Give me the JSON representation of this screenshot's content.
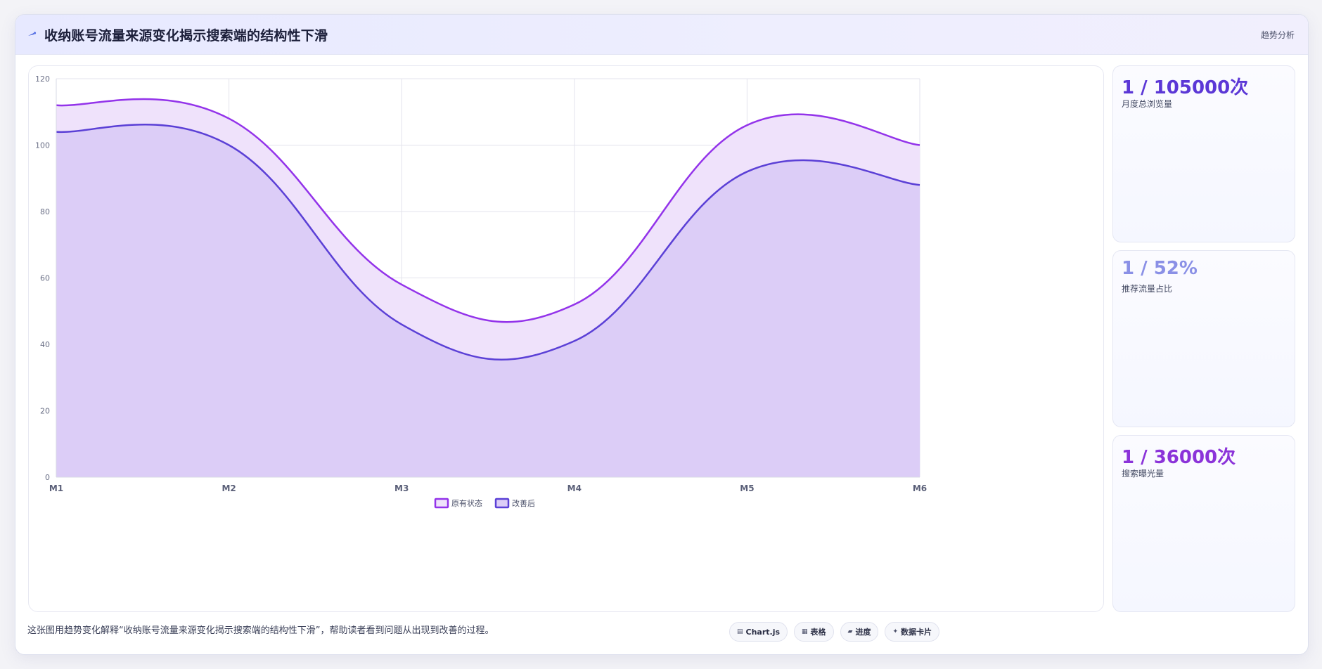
{
  "header": {
    "title": "收纳账号流量来源变化揭示搜索端的结构性下滑",
    "tag": "趋势分析",
    "icon": "comet-icon"
  },
  "chart_data": {
    "type": "area",
    "categories": [
      "M1",
      "M2",
      "M3",
      "M4",
      "M5",
      "M6"
    ],
    "ylim": [
      0,
      120
    ],
    "yticks": [
      0,
      20,
      40,
      60,
      80,
      100,
      120
    ],
    "grid": true,
    "legend_position": "bottom",
    "series": [
      {
        "name": "原有状态",
        "values": [
          112,
          108,
          58,
          52,
          106,
          100
        ],
        "color": "#9333ea",
        "fill": "#efe2fb"
      },
      {
        "name": "改善后",
        "values": [
          104,
          100,
          46,
          41,
          92,
          88
        ],
        "color": "#5b40d6",
        "fill": "#dccdf7"
      }
    ]
  },
  "stats": [
    {
      "value": "1 / 105000次",
      "label": "月度总浏览量",
      "color": "#5b37d6"
    },
    {
      "value": "1 / 52%",
      "label": "推荐流量占比",
      "color": "#8a90e6"
    },
    {
      "value": "1 / 36000次",
      "label": "搜索曝光量",
      "color": "#8b33d9"
    }
  ],
  "footer": {
    "caption": "这张图用趋势变化解释“收纳账号流量来源变化揭示搜索端的结构性下滑”，帮助读者看到问题从出现到改善的过程。",
    "chips": [
      {
        "icon": "chart-icon",
        "glyph": "▤",
        "label": "Chart.js"
      },
      {
        "icon": "table-icon",
        "glyph": "▦",
        "label": "表格"
      },
      {
        "icon": "progress-icon",
        "glyph": "▰",
        "label": "进度"
      },
      {
        "icon": "sparkle-icon",
        "glyph": "✦",
        "label": "数据卡片"
      }
    ]
  }
}
